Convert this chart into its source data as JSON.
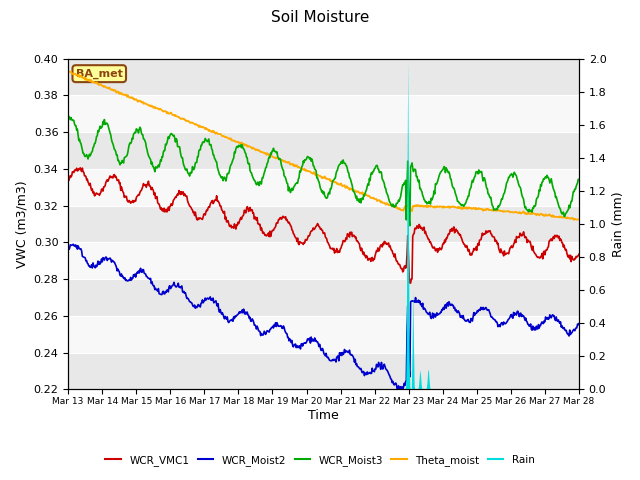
{
  "title": "Soil Moisture",
  "xlabel": "Time",
  "ylabel_left": "VWC (m3/m3)",
  "ylabel_right": "Rain (mm)",
  "ylim_left": [
    0.22,
    0.4
  ],
  "ylim_right": [
    0.0,
    2.0
  ],
  "yticks_left": [
    0.22,
    0.24,
    0.26,
    0.28,
    0.3,
    0.32,
    0.34,
    0.36,
    0.38,
    0.4
  ],
  "yticks_right": [
    0.0,
    0.2,
    0.4,
    0.6,
    0.8,
    1.0,
    1.2,
    1.4,
    1.6,
    1.8,
    2.0
  ],
  "colors": {
    "WCR_VMC1": "#cc0000",
    "WCR_Moist2": "#0000cc",
    "WCR_Moist3": "#00aa00",
    "Theta_moist": "#ffaa00",
    "Rain": "#00dddd"
  },
  "bg_color": "#e8e8e8",
  "white_band_color": "#f8f8f8",
  "label_box_color": "#ffff99",
  "label_box_edge_color": "#8B4513",
  "label_text": "BA_met",
  "legend_labels": [
    "WCR_VMC1",
    "WCR_Moist2",
    "WCR_Moist3",
    "Theta_moist",
    "Rain"
  ]
}
